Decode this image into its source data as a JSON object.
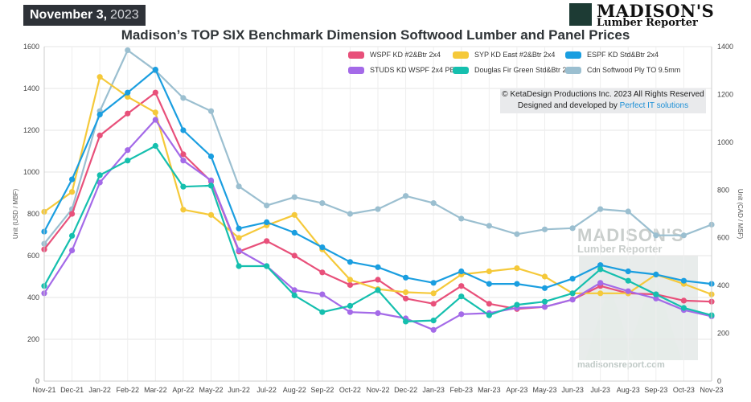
{
  "header": {
    "date_bold": "November 3,",
    "date_year": "2023",
    "logo_name": "MADISON'S",
    "logo_sub": "Lumber Reporter"
  },
  "credits": {
    "line1": "© KetaDesign Productions Inc. 2023 All Rights Reserved",
    "line2_prefix": "Designed and developed by ",
    "line2_link": "Perfect IT solutions"
  },
  "watermark": {
    "name": "MADISON'S",
    "sub": "Lumber Reporter",
    "url": "madisonsreport.com"
  },
  "chart_data": {
    "type": "line",
    "title": "Madison’s TOP SIX Benchmark Dimension Softwood Lumber and Panel Prices",
    "ylabel_left": "Unit (USD / MBF)",
    "ylabel_right": "Unit (CAD / MSF)",
    "ylim_left": [
      0,
      1600
    ],
    "ylim_right": [
      0,
      1400
    ],
    "yticks_left": [
      0,
      200,
      400,
      600,
      800,
      1000,
      1200,
      1400,
      1600
    ],
    "yticks_right": [
      0,
      200,
      400,
      600,
      800,
      1000,
      1200,
      1400
    ],
    "grid": true,
    "legend_position": "top-right",
    "categories": [
      "Nov-21",
      "Dec-21",
      "Jan-22",
      "Feb-22",
      "Mar-22",
      "Apr-22",
      "May-22",
      "Jun-22",
      "Jul-22",
      "Aug-22",
      "Sep-22",
      "Oct-22",
      "Nov-22",
      "Dec-22",
      "Jan-23",
      "Feb-23",
      "Mar-23",
      "Apr-23",
      "May-23",
      "Jun-23",
      "Jul-23",
      "Aug-23",
      "Sep-23",
      "Oct-23",
      "Nov-23"
    ],
    "series": [
      {
        "name": "WSPF KD #2&Btr 2x4",
        "color": "#e8507a",
        "axis": "left",
        "values": [
          630,
          800,
          1175,
          1280,
          1380,
          1085,
          955,
          620,
          670,
          600,
          520,
          460,
          485,
          395,
          370,
          455,
          370,
          345,
          355,
          390,
          455,
          420,
          415,
          385,
          380
        ]
      },
      {
        "name": "SYP KD East #2&Btr 2x4",
        "color": "#f5c93a",
        "axis": "left",
        "values": [
          810,
          905,
          1455,
          1360,
          1285,
          820,
          795,
          685,
          745,
          795,
          630,
          485,
          440,
          425,
          420,
          510,
          525,
          540,
          500,
          420,
          420,
          420,
          510,
          465,
          415
        ]
      },
      {
        "name": "ESPF KD Std&Btr 2x4",
        "color": "#1a9ee0",
        "axis": "left",
        "values": [
          715,
          965,
          1275,
          1380,
          1490,
          1200,
          1075,
          730,
          760,
          710,
          640,
          570,
          545,
          495,
          470,
          525,
          465,
          465,
          445,
          490,
          555,
          525,
          510,
          480,
          465
        ]
      },
      {
        "name": "STUDS KD WSPF 2x4 PET",
        "color": "#a46ae8",
        "axis": "left",
        "values": [
          420,
          625,
          950,
          1105,
          1250,
          1055,
          960,
          625,
          550,
          435,
          415,
          330,
          325,
          300,
          245,
          320,
          325,
          350,
          355,
          390,
          470,
          430,
          395,
          340,
          310
        ]
      },
      {
        "name": "Douglas Fir Green Std&Btr 2x4",
        "color": "#15bfae",
        "axis": "left",
        "values": [
          455,
          695,
          985,
          1055,
          1125,
          930,
          935,
          550,
          550,
          410,
          330,
          360,
          435,
          285,
          290,
          405,
          315,
          365,
          380,
          420,
          535,
          480,
          415,
          350,
          315
        ]
      },
      {
        "name": "Cdn Softwood Ply TO 9.5mm",
        "color": "#9bbfd0",
        "axis": "right",
        "values": [
          575,
          720,
          1130,
          1385,
          1300,
          1185,
          1130,
          815,
          735,
          770,
          745,
          700,
          720,
          775,
          745,
          680,
          650,
          615,
          635,
          640,
          720,
          710,
          610,
          610,
          655
        ]
      }
    ]
  }
}
